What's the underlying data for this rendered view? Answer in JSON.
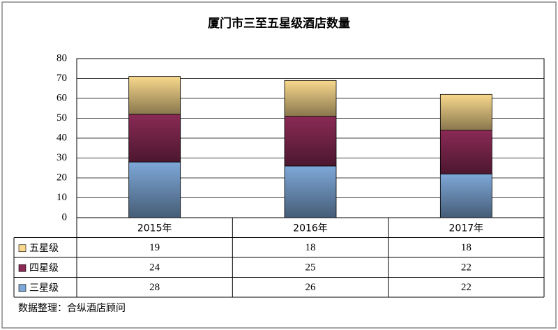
{
  "chart_data": {
    "type": "stacked-bar",
    "title": "厦门市三至五星级酒店数量",
    "categories": [
      "2015年",
      "2016年",
      "2017年"
    ],
    "series": [
      {
        "name": "五星级",
        "color": "#f8d88c",
        "values": [
          19,
          18,
          18
        ]
      },
      {
        "name": "四星级",
        "color": "#8a2a55",
        "values": [
          24,
          25,
          22
        ]
      },
      {
        "name": "三星级",
        "color": "#7ea8d8",
        "values": [
          28,
          26,
          22
        ]
      }
    ],
    "ylim": [
      0,
      80
    ],
    "yticks": [
      0,
      10,
      20,
      30,
      40,
      50,
      60,
      70,
      80
    ],
    "grid": true,
    "source": "数据整理：合纵酒店顾问"
  }
}
